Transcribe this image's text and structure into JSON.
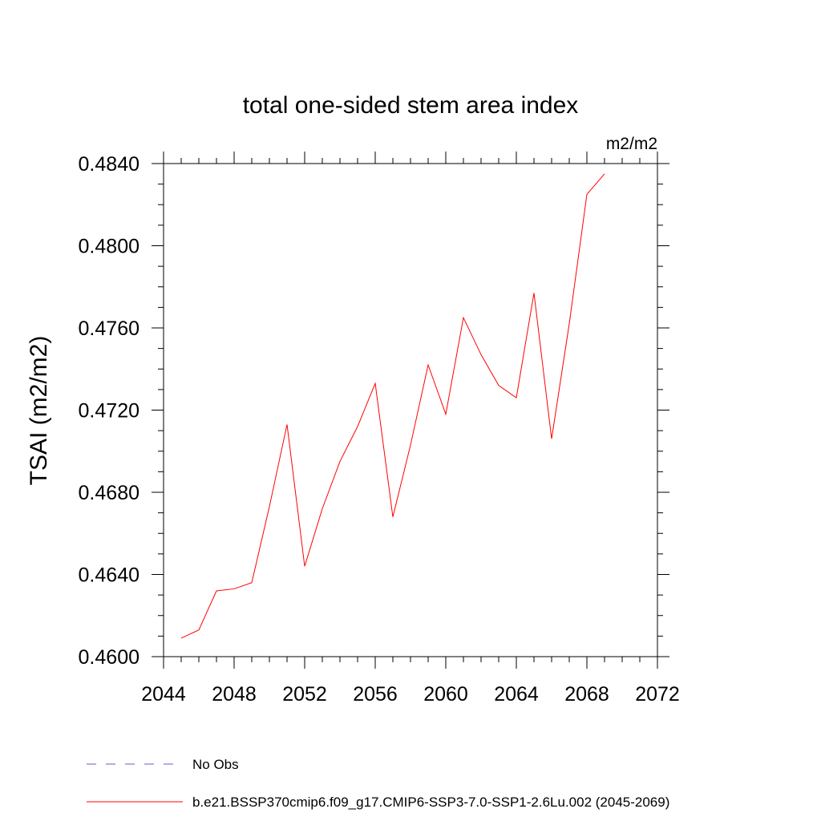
{
  "chart_data": {
    "type": "line",
    "title": "total one-sided stem area index",
    "units_label": "m2/m2",
    "ylabel": "TSAI  (m2/m2)",
    "xlabel": "",
    "xlim": [
      2044,
      2072
    ],
    "ylim": [
      0.46,
      0.484
    ],
    "xticks": [
      "2044",
      "2048",
      "2052",
      "2056",
      "2060",
      "2064",
      "2068",
      "2072"
    ],
    "yticks": [
      "0.4600",
      "0.4640",
      "0.4680",
      "0.4720",
      "0.4760",
      "0.4800",
      "0.4840"
    ],
    "grid": false,
    "legend_position": "bottom",
    "legend": [
      {
        "label": "No Obs",
        "color": "#6a5acd",
        "style": "dashed"
      },
      {
        "label": "b.e21.BSSP370cmip6.f09_g17.CMIP6-SSP3-7.0-SSP1-2.6Lu.002 (2045-2069)",
        "color": "#ff0000",
        "style": "solid"
      }
    ],
    "series": [
      {
        "name": "b.e21.BSSP370cmip6.f09_g17.CMIP6-SSP3-7.0-SSP1-2.6Lu.002 (2045-2069)",
        "color": "#ff0000",
        "x": [
          2045,
          2046,
          2047,
          2048,
          2049,
          2050,
          2051,
          2052,
          2053,
          2054,
          2055,
          2056,
          2057,
          2058,
          2059,
          2060,
          2061,
          2062,
          2063,
          2064,
          2065,
          2066,
          2067,
          2068,
          2069
        ],
        "y": [
          0.4609,
          0.4613,
          0.4632,
          0.4633,
          0.4636,
          0.4673,
          0.4713,
          0.4644,
          0.4672,
          0.4695,
          0.4712,
          0.4733,
          0.4668,
          0.4703,
          0.4742,
          0.4718,
          0.4765,
          0.4747,
          0.4732,
          0.4726,
          0.4777,
          0.4706,
          0.4762,
          0.4825,
          0.4835
        ]
      }
    ]
  }
}
